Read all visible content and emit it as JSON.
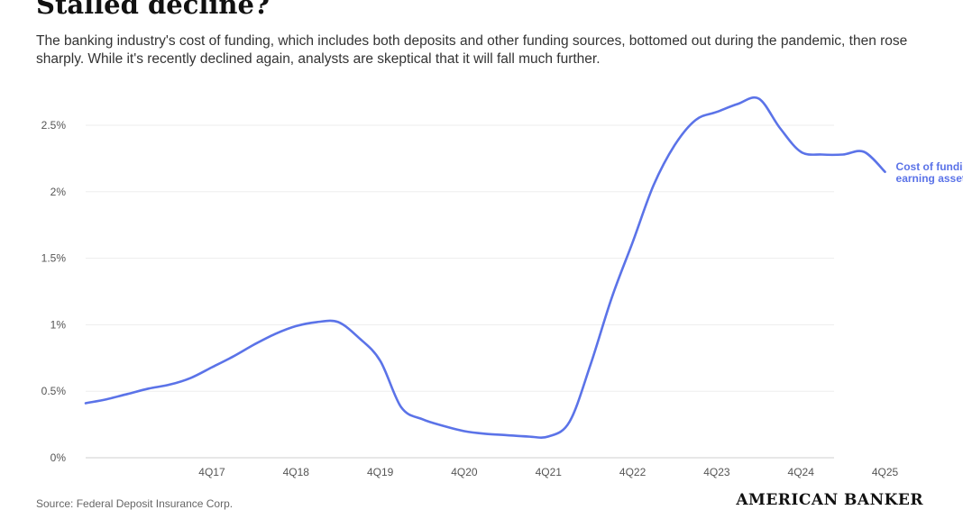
{
  "chart_data": {
    "type": "line",
    "title": "Stalled decline?",
    "subtitle": "The banking industry's cost of funding, which includes both deposits and other funding sources, bottomed out during the pandemic, then rose sharply. While it's recently declined again, analysts are skeptical that it will fall much further.",
    "xlabel": "",
    "ylabel": "",
    "x_ticks": [
      "4Q17",
      "4Q18",
      "4Q19",
      "4Q20",
      "4Q21",
      "4Q22",
      "4Q23",
      "4Q24",
      "4Q25"
    ],
    "y_ticks": [
      "0%",
      "0.5%",
      "1%",
      "1.5%",
      "2%",
      "2.5%"
    ],
    "ylim": [
      0,
      2.75
    ],
    "grid": true,
    "legend": "inline-end",
    "categories": [
      "2Q16",
      "3Q16",
      "4Q16",
      "1Q17",
      "2Q17",
      "3Q17",
      "4Q17",
      "1Q18",
      "2Q18",
      "3Q18",
      "4Q18",
      "1Q19",
      "2Q19",
      "3Q19",
      "4Q19",
      "1Q20",
      "2Q20",
      "3Q20",
      "4Q20",
      "1Q21",
      "2Q21",
      "3Q21",
      "4Q21",
      "1Q22",
      "2Q22",
      "3Q22",
      "4Q22",
      "1Q23",
      "2Q23",
      "3Q23",
      "4Q23",
      "1Q24",
      "2Q24",
      "3Q24",
      "4Q24",
      "1Q25",
      "2Q25",
      "3Q25",
      "4Q25"
    ],
    "series": [
      {
        "name": "Cost of funding earning assets",
        "name_lines": [
          "Cost of funding",
          "earning assets"
        ],
        "color": "#5b73e8",
        "values": [
          0.41,
          0.44,
          0.48,
          0.52,
          0.55,
          0.6,
          0.68,
          0.76,
          0.85,
          0.93,
          0.99,
          1.02,
          1.02,
          0.9,
          0.73,
          0.38,
          0.29,
          0.24,
          0.2,
          0.18,
          0.17,
          0.16,
          0.16,
          0.27,
          0.7,
          1.2,
          1.62,
          2.05,
          2.35,
          2.54,
          2.6,
          2.66,
          2.7,
          2.48,
          2.3,
          2.28,
          2.28,
          2.3,
          2.15
        ]
      }
    ]
  },
  "footer": {
    "source": "Source: Federal Deposit Insurance Corp.",
    "brand": "AMERICAN BANKER"
  }
}
